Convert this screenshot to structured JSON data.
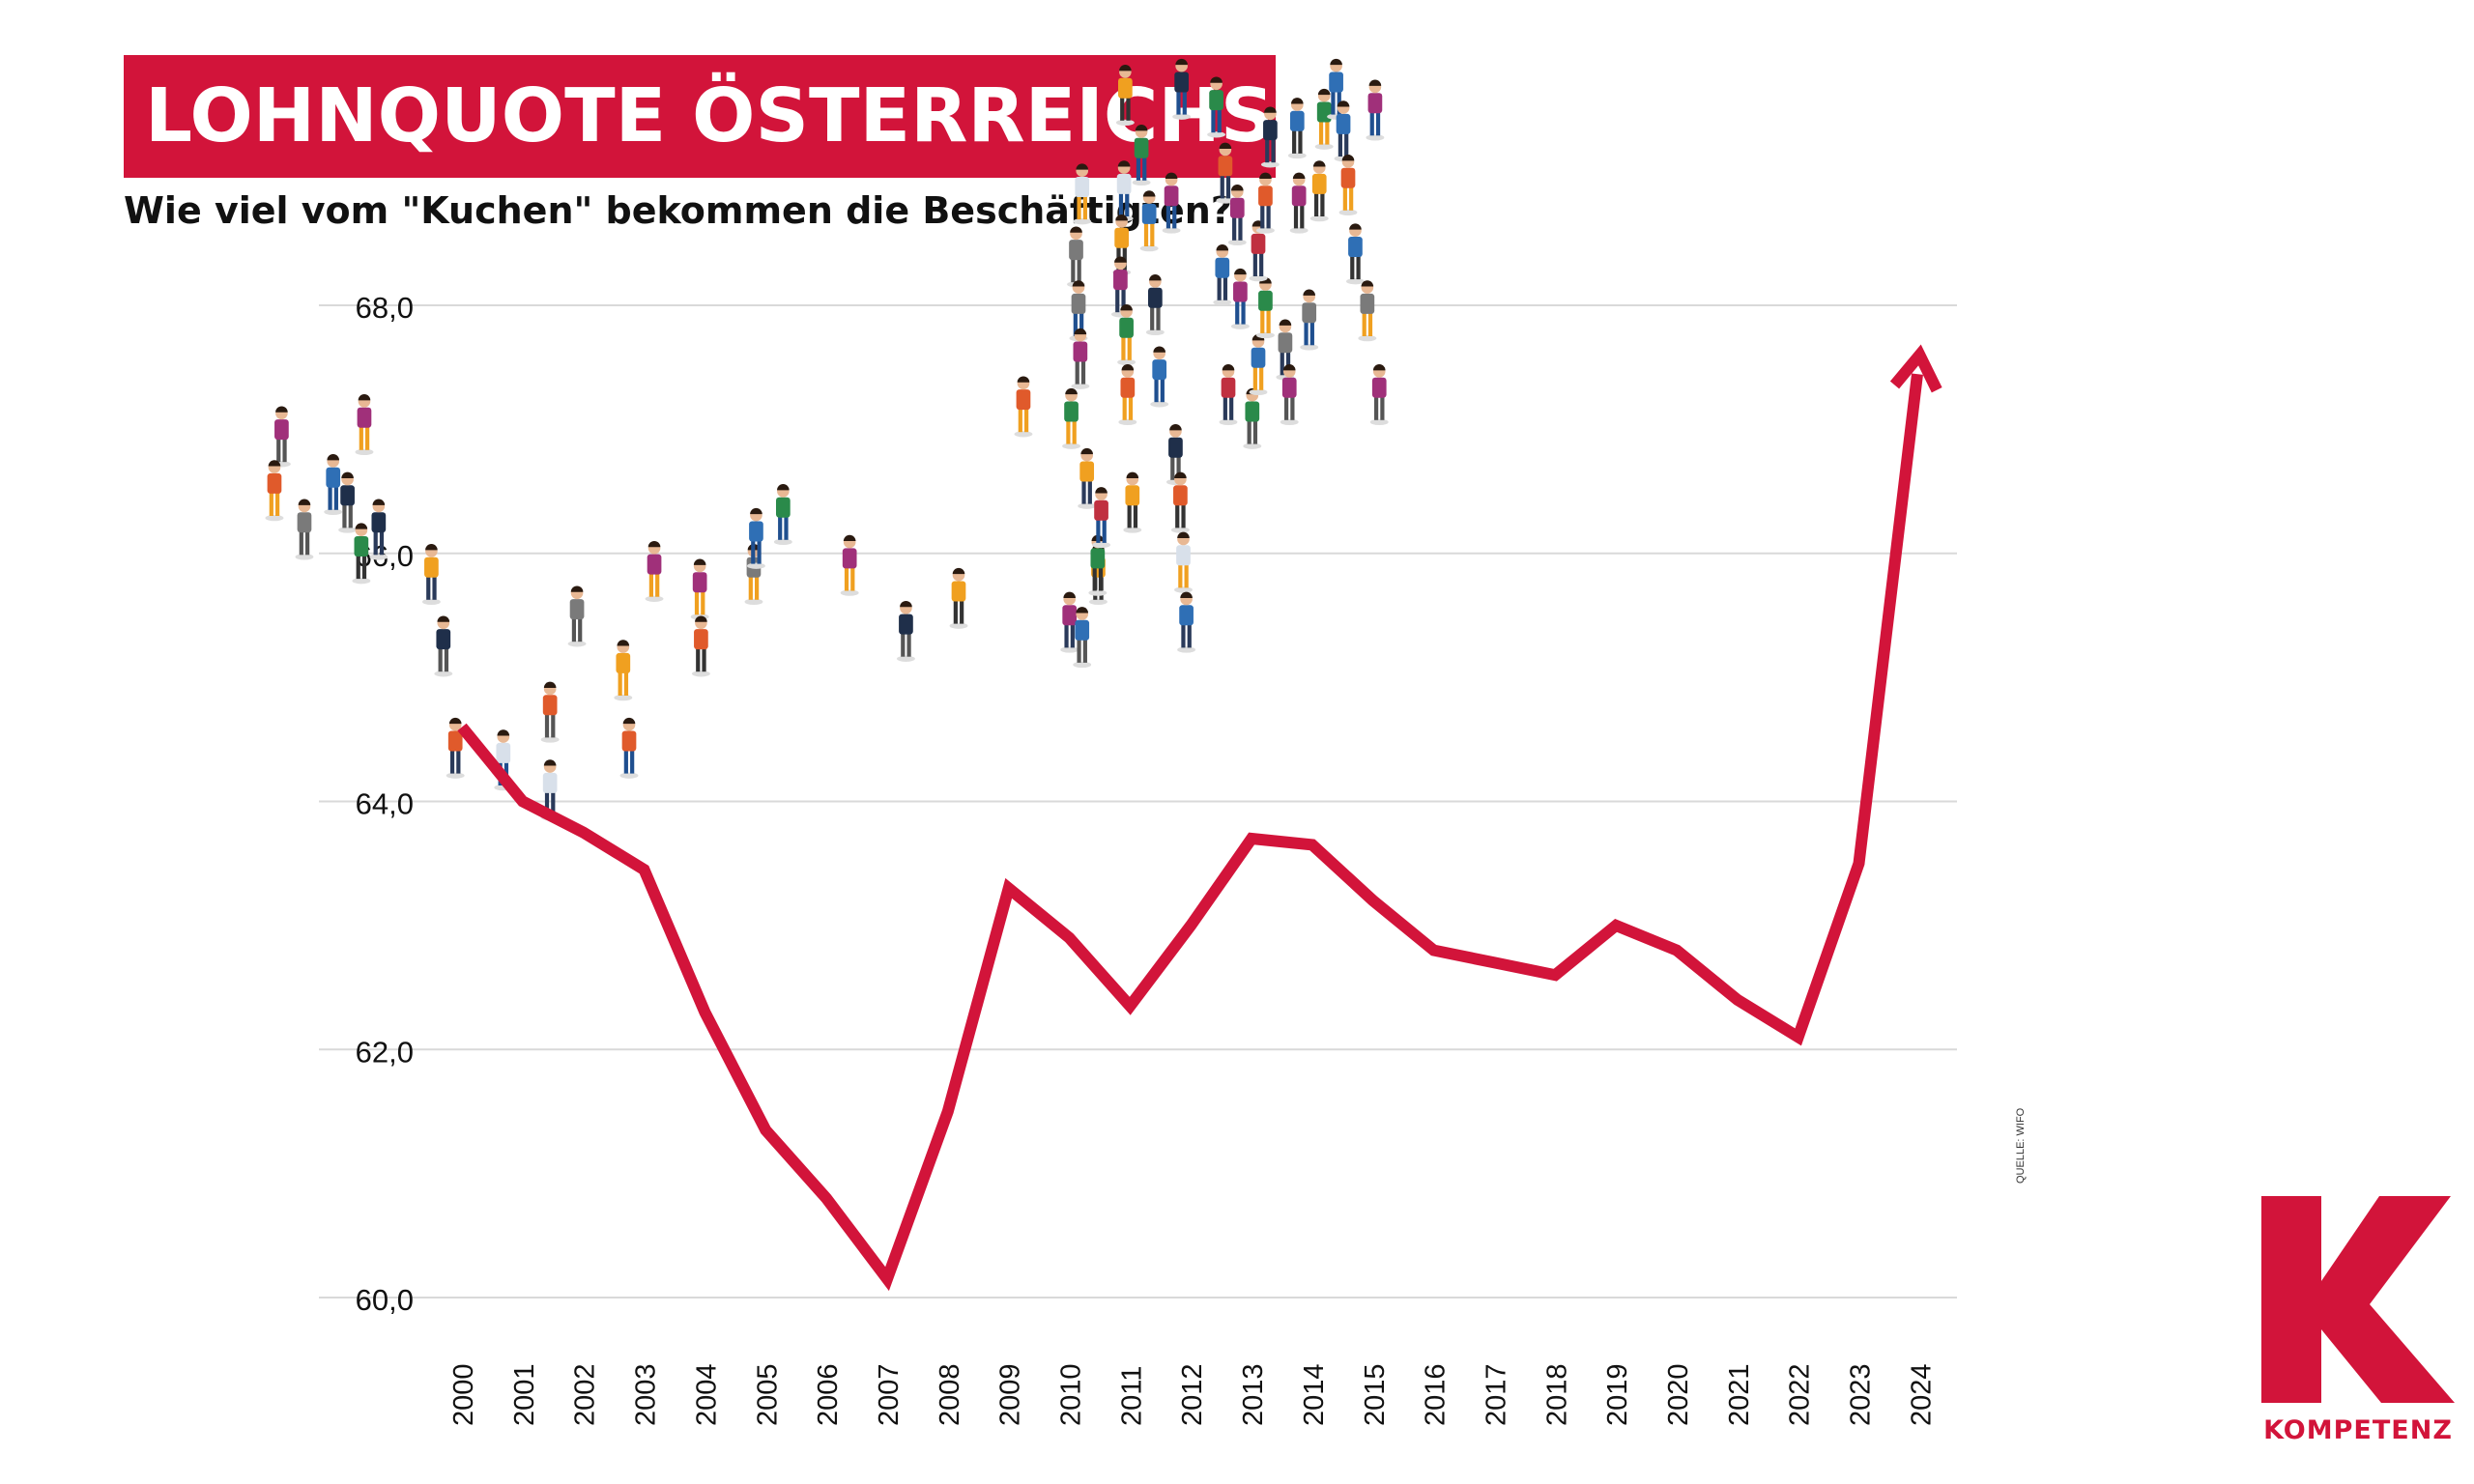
{
  "header": {
    "title": "LOHNQUOTE ÖSTERREICHS",
    "subtitle": "Wie viel vom \"Kuchen\" bekommen die Beschäftigten?"
  },
  "source": "QUELLE: WIFO",
  "logo": {
    "letter": "K",
    "name": "KOMPETENZ",
    "color": "#d2143a"
  },
  "colors": {
    "line": "#d2143a",
    "grid": "#d9d9d9",
    "axis_text": "#111111"
  },
  "chart_data": {
    "type": "line",
    "title": "",
    "xlabel": "",
    "ylabel": "",
    "ylim": [
      60.0,
      68.0
    ],
    "yticks": [
      "60,0",
      "62,0",
      "64,0",
      "66,0",
      "68,0"
    ],
    "ytick_values": [
      60.0,
      62.0,
      64.0,
      66.0,
      68.0
    ],
    "grid": true,
    "categories": [
      "2000",
      "2001",
      "2002",
      "2003",
      "2004",
      "2005",
      "2006",
      "2007",
      "2008",
      "2009",
      "2010",
      "2011",
      "2012",
      "2013",
      "2014",
      "2015",
      "2016",
      "2017",
      "2018",
      "2019",
      "2020",
      "2021",
      "2022",
      "2023",
      "2024"
    ],
    "series": [
      {
        "values": [
          64.6,
          64.0,
          63.75,
          63.45,
          62.3,
          61.35,
          60.8,
          60.15,
          61.5,
          63.3,
          62.9,
          62.35,
          63.0,
          63.7,
          63.65,
          63.2,
          62.8,
          62.7,
          62.6,
          63.0,
          62.8,
          62.4,
          62.1,
          63.5,
          67.6
        ],
        "color": "#d2143a",
        "arrow_end": true
      }
    ]
  }
}
